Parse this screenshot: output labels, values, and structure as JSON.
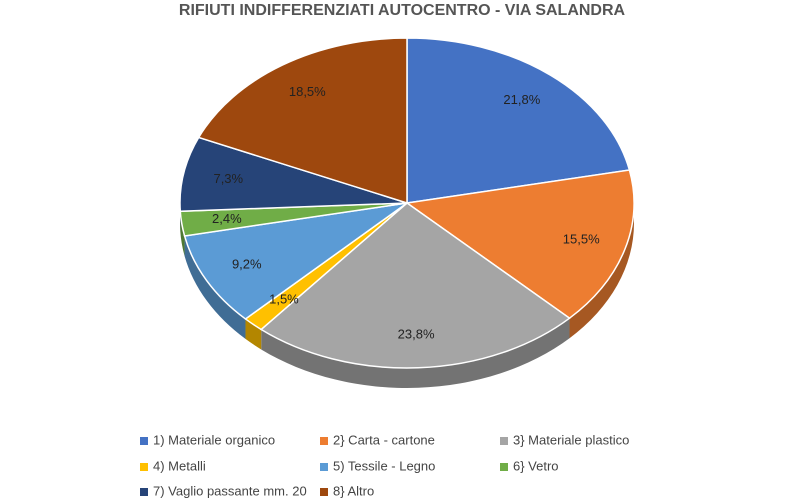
{
  "chart_data": {
    "type": "pie",
    "title": "RIFIUTI INDIFFERENZIATI AUTOCENTRO - VIA SALANDRA",
    "categories": [
      "1) Materiale organico",
      "2} Carta - cartone",
      "3} Materiale plastico",
      "4) Metalli",
      "5) Tessile - Legno",
      "6} Vetro",
      "7) Vaglio passante mm. 20",
      "8} Altro"
    ],
    "values": [
      21.8,
      15.5,
      23.8,
      1.5,
      9.2,
      2.4,
      7.3,
      18.5
    ],
    "value_labels": [
      "21,8%",
      "15,5%",
      "23,8%",
      "1,5%",
      "9,2%",
      "2,4%",
      "7,3%",
      "18,5%"
    ],
    "colors": [
      "#4472c4",
      "#ed7d31",
      "#a5a5a5",
      "#ffc000",
      "#5b9bd5",
      "#70ad47",
      "#264478",
      "#9e480e"
    ],
    "legend": "bottom"
  }
}
